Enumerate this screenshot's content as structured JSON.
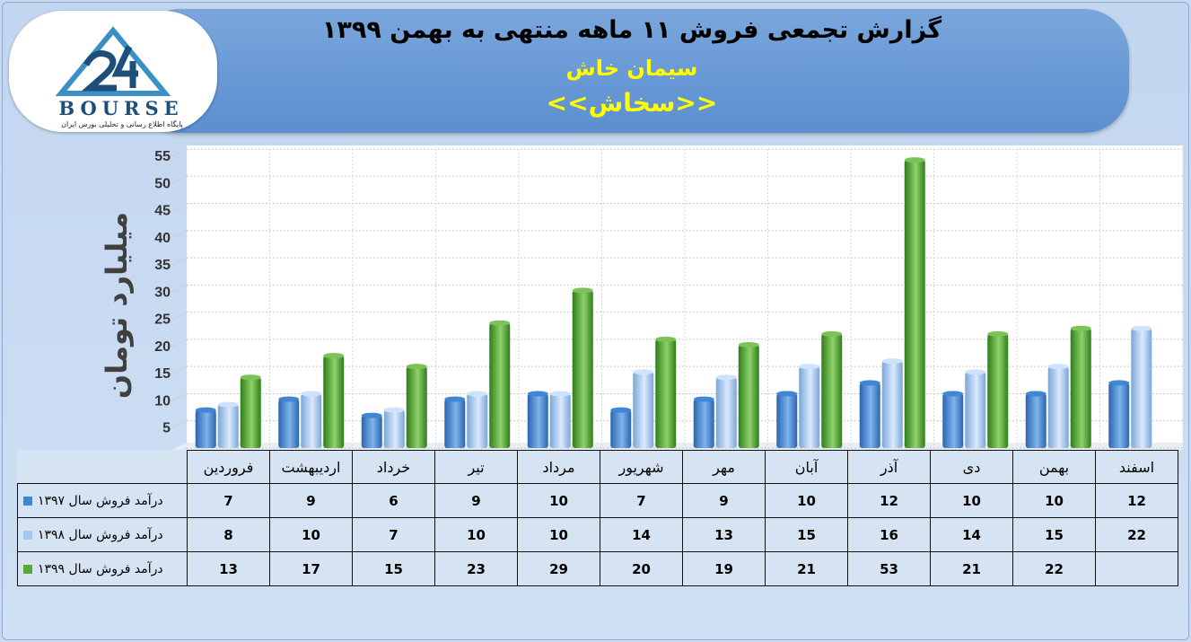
{
  "header": {
    "title": "گزارش تجمعی فروش ۱۱ ماهه منتهی به بهمن ۱۳۹۹",
    "subtitle": "سیمان خاش",
    "ticker": "<<سخاش>>"
  },
  "logo": {
    "text": "BOURSE",
    "subtitle": "پایگاه اطلاع رسانی و تحلیلی بورس ایران"
  },
  "colors": {
    "series_1397": "#3f86d4",
    "series_1398": "#a6c8ee",
    "series_1399": "#5aa83a",
    "plot_bg": "#ffffff",
    "header_bg": "#5b8fd0",
    "accent_yellow": "#ffff00"
  },
  "chart_data": {
    "type": "bar",
    "ylabel": "میلیارد تومان",
    "ylim": [
      0,
      55
    ],
    "yticks": [
      0,
      5,
      10,
      15,
      20,
      25,
      30,
      35,
      40,
      45,
      50,
      55
    ],
    "grid": true,
    "categories": [
      "فروردین",
      "اردیبهشت",
      "خرداد",
      "تیر",
      "مرداد",
      "شهریور",
      "مهر",
      "آبان",
      "آذر",
      "دی",
      "بهمن",
      "اسفند"
    ],
    "series": [
      {
        "name": "درآمد فروش سال ۱۳۹۷",
        "values": [
          7,
          9,
          6,
          9,
          10,
          7,
          9,
          10,
          12,
          10,
          10,
          12
        ]
      },
      {
        "name": "درآمد فروش سال ۱۳۹۸",
        "values": [
          8,
          10,
          7,
          10,
          10,
          14,
          13,
          15,
          16,
          14,
          15,
          22
        ]
      },
      {
        "name": "درآمد فروش سال ۱۳۹۹",
        "values": [
          13,
          17,
          15,
          23,
          29,
          20,
          19,
          21,
          53,
          21,
          22,
          null
        ]
      }
    ]
  }
}
